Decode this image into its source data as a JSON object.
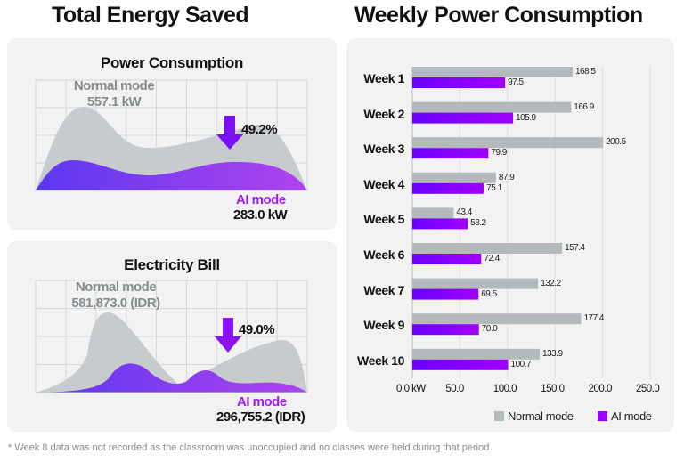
{
  "left": {
    "title": "Total Energy Saved",
    "power": {
      "title": "Power Consumption",
      "normal_label": "Normal mode",
      "normal_value": "557.1 kW",
      "ai_label": "AI mode",
      "ai_value": "283.0 kW",
      "reduction": "49.2%"
    },
    "bill": {
      "title": "Electricity Bill",
      "normal_label": "Normal mode",
      "normal_value": "581,873.0 (IDR)",
      "ai_label": "AI mode",
      "ai_value": "296,755.2 (IDR)",
      "reduction": "49.0%"
    }
  },
  "footnote": "* Week 8 data was not recorded as the classroom was unoccupied and no classes were held during that period.",
  "colors": {
    "normal": "#b4b9bb",
    "ai": "#9b00ff",
    "ai_start": "#6a00ff",
    "panel": "#f2f2f2"
  },
  "chart_data": {
    "type": "bar",
    "orientation": "horizontal",
    "title": "Weekly Power Consumption",
    "categories": [
      "Week 1",
      "Week 2",
      "Week 3",
      "Week 4",
      "Week 5",
      "Week 6",
      "Week 7",
      "Week 9",
      "Week 10"
    ],
    "series": [
      {
        "name": "Normal mode",
        "values": [
          168.5,
          166.9,
          200.5,
          87.9,
          43.4,
          157.4,
          132.2,
          177.4,
          133.9
        ],
        "labels": [
          "168.5",
          "166.9",
          "200.5",
          "87.9",
          "43.4",
          "157.4",
          "132.2",
          "177.4",
          "133.9"
        ]
      },
      {
        "name": "AI mode",
        "values": [
          97.5,
          105.9,
          79.9,
          75.1,
          58.2,
          72.4,
          69.5,
          70.0,
          100.7
        ],
        "labels": [
          "97.5",
          "105.9",
          "79.9",
          "75.1",
          "58.2",
          "72.4",
          "69.5",
          "70.0",
          "100.7"
        ]
      }
    ],
    "xlim": [
      0,
      250
    ],
    "ticks": [
      "0.0 kW",
      "50.0",
      "100.0",
      "150.0",
      "200.0",
      "250.0"
    ],
    "tick_values": [
      0,
      50,
      100,
      150,
      200,
      250
    ],
    "grid": true,
    "legend": "bottom-right"
  }
}
